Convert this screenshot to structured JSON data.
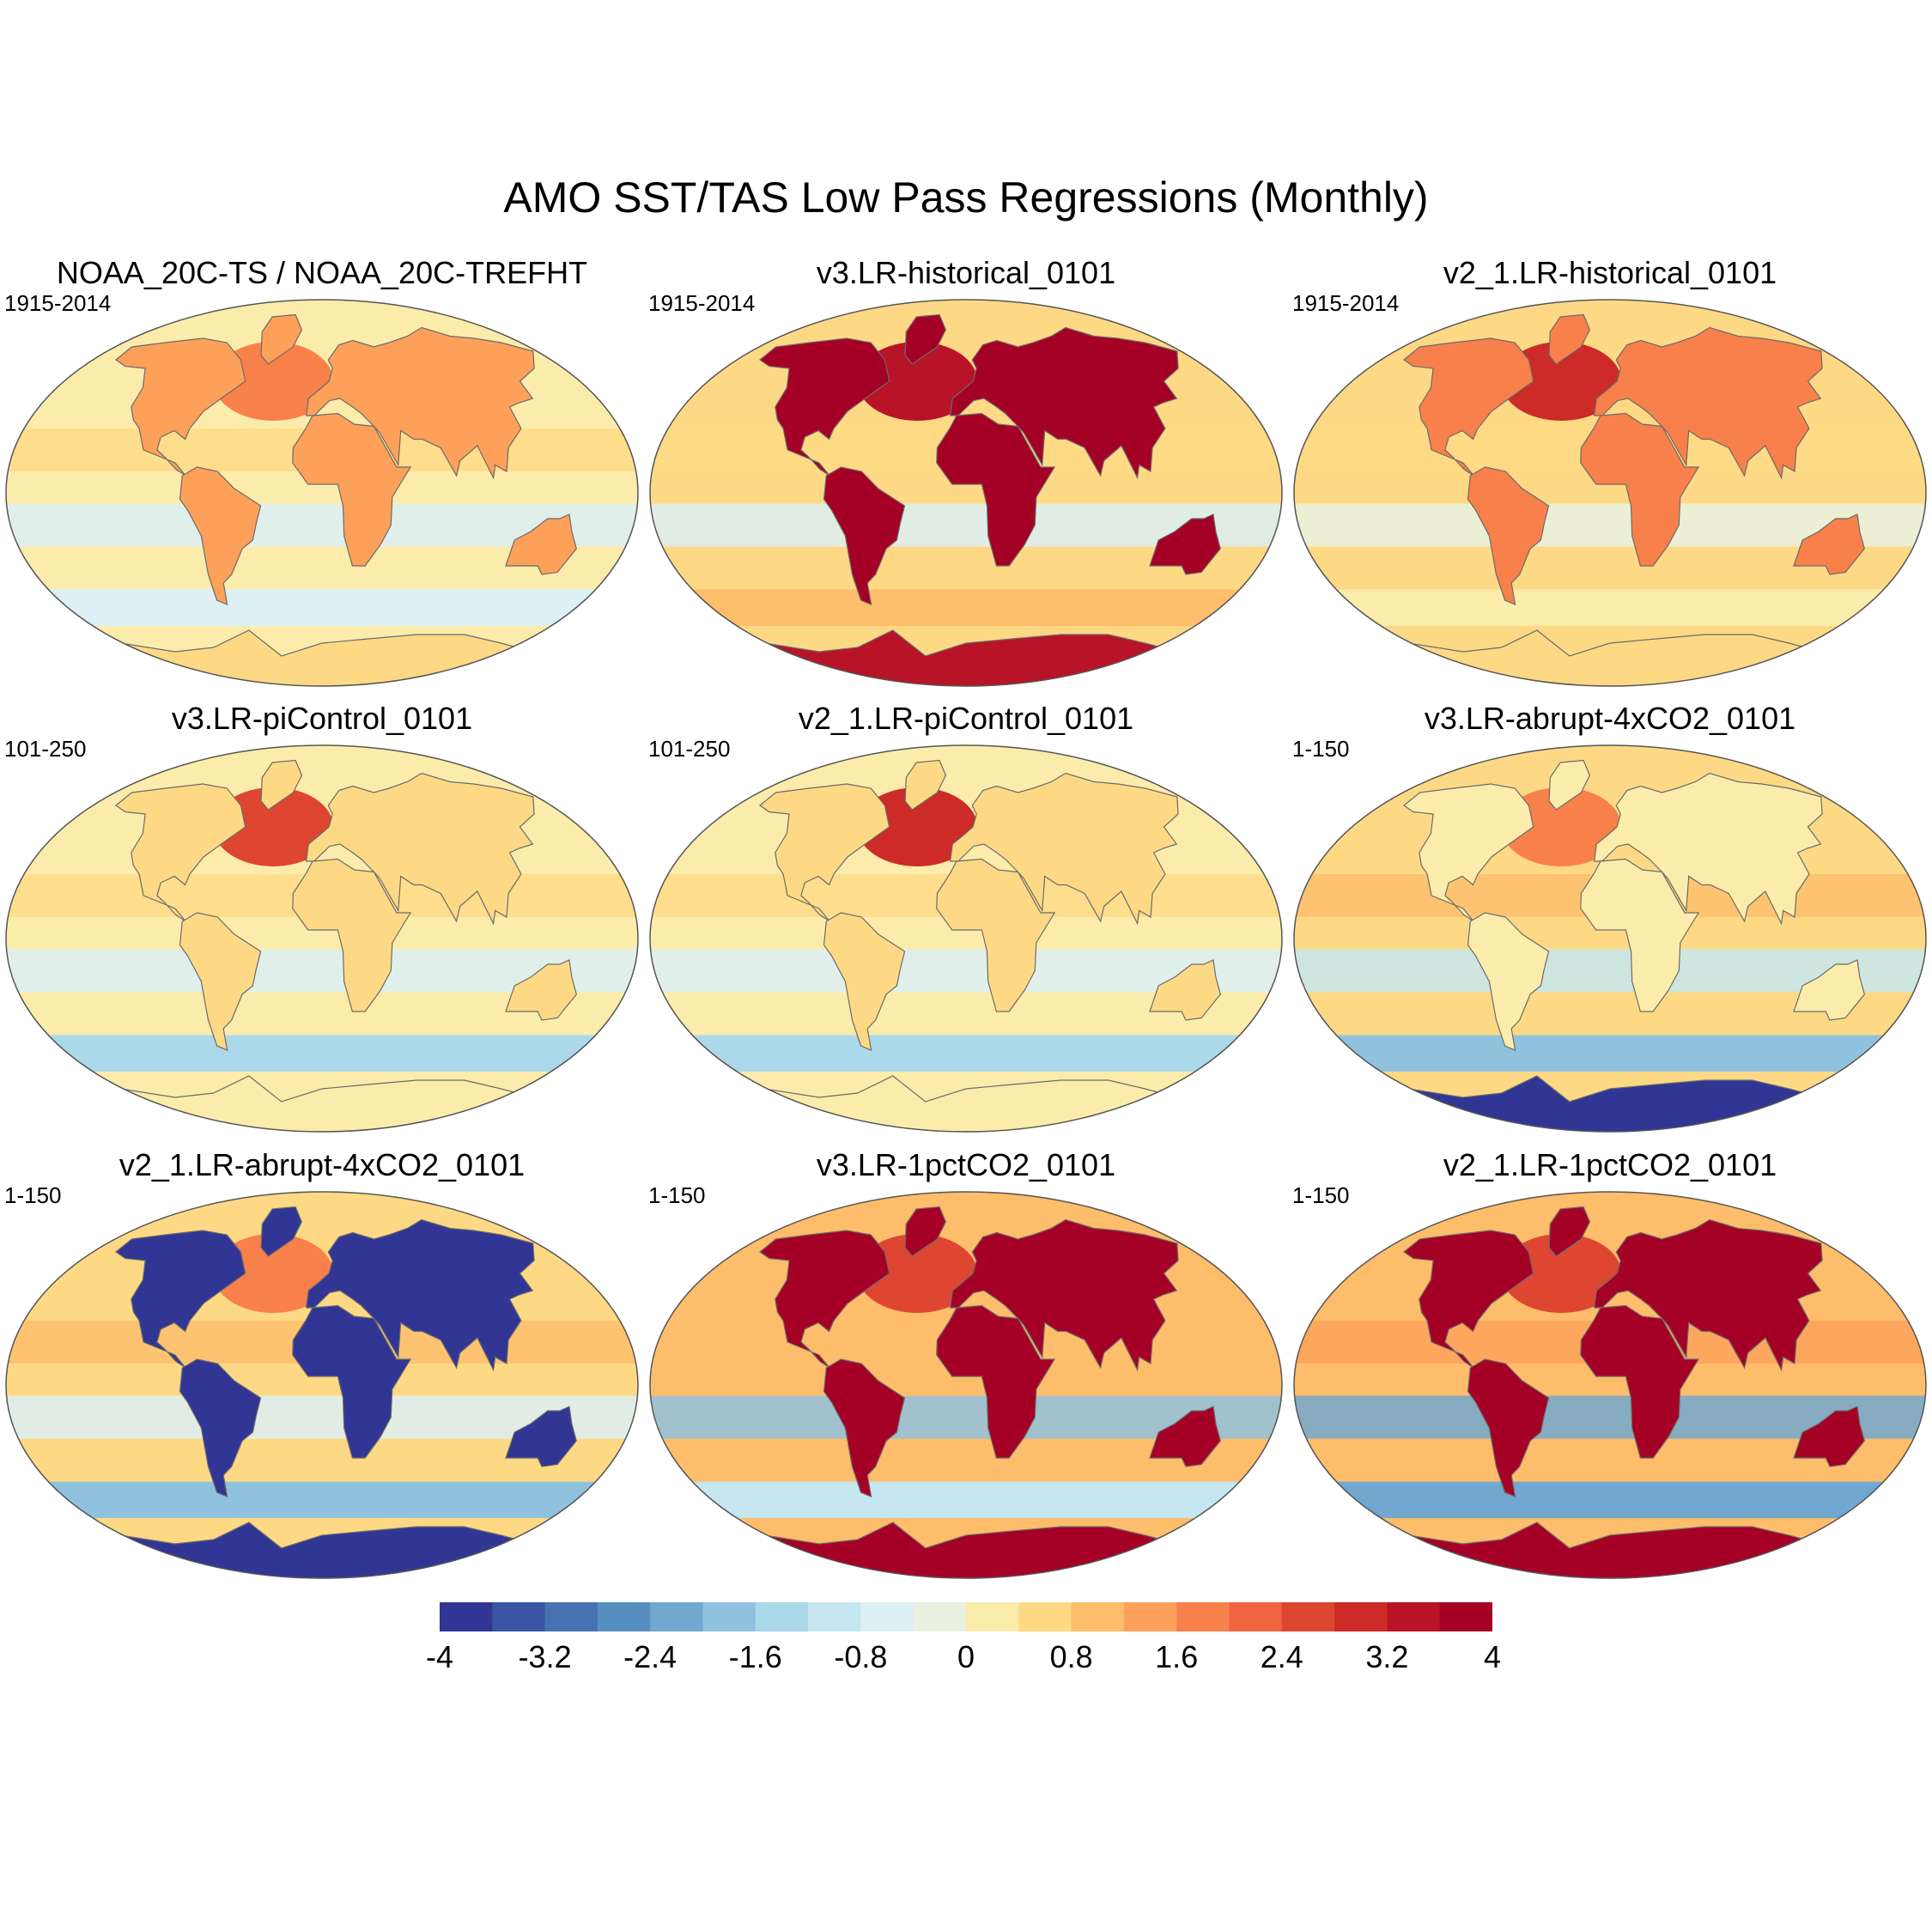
{
  "title": "AMO SST/TAS Low Pass Regressions (Monthly)",
  "panels": [
    {
      "title": "NOAA_20C-TS / NOAA_20C-TREFHT",
      "period": "1915-2014",
      "land": 1.2,
      "ocean": 0.3,
      "n_atlantic": 1.8,
      "southern_ocean": -0.8,
      "antarctica": 0.6,
      "tropical_pacific": 0.4,
      "tropical_south": -0.6
    },
    {
      "title": "v3.LR-historical_0101",
      "period": "1915-2014",
      "land": 4.2,
      "ocean": 0.6,
      "n_atlantic": 3.4,
      "southern_ocean": 1.0,
      "antarctica": 3.2,
      "tropical_pacific": 0.5,
      "tropical_south": -0.8
    },
    {
      "title": "v2_1.LR-historical_0101",
      "period": "1915-2014",
      "land": 1.8,
      "ocean": 0.4,
      "n_atlantic": 3.0,
      "southern_ocean": 0.2,
      "antarctica": 0.4,
      "tropical_pacific": 0.6,
      "tropical_south": -0.4
    },
    {
      "title": "v3.LR-piControl_0101",
      "period": "101-250",
      "land": 0.6,
      "ocean": 0.2,
      "n_atlantic": 2.6,
      "southern_ocean": -1.4,
      "antarctica": 0.3,
      "tropical_pacific": 0.6,
      "tropical_south": -0.8
    },
    {
      "title": "v2_1.LR-piControl_0101",
      "period": "101-250",
      "land": 0.4,
      "ocean": 0.1,
      "n_atlantic": 3.0,
      "southern_ocean": -1.6,
      "antarctica": 0.3,
      "tropical_pacific": 0.5,
      "tropical_south": -0.8
    },
    {
      "title": "v3.LR-abrupt-4xCO2_0101",
      "period": "1-150",
      "land": 0.3,
      "ocean": 0.4,
      "n_atlantic": 1.8,
      "southern_ocean": -2.0,
      "antarctica": -4.2,
      "tropical_pacific": 0.8,
      "tropical_south": -1.0
    },
    {
      "title": "v2_1.LR-abrupt-4xCO2_0101",
      "period": "1-150",
      "land": -4.2,
      "ocean": 0.6,
      "n_atlantic": 1.6,
      "southern_ocean": -2.0,
      "antarctica": -4.4,
      "tropical_pacific": 1.0,
      "tropical_south": -0.8
    },
    {
      "title": "v3.LR-1pctCO2_0101",
      "period": "1-150",
      "land": 4.4,
      "ocean": 0.9,
      "n_atlantic": 2.4,
      "southern_ocean": -1.2,
      "antarctica": 4.4,
      "tropical_pacific": 1.0,
      "tropical_south": -1.8
    },
    {
      "title": "v2_1.LR-1pctCO2_0101",
      "period": "1-150",
      "land": 4.4,
      "ocean": 1.0,
      "n_atlantic": 2.6,
      "southern_ocean": -2.4,
      "antarctica": 4.4,
      "tropical_pacific": 1.2,
      "tropical_south": -2.2
    }
  ],
  "colorbar": {
    "levels": [
      -4,
      -3.6,
      -3.2,
      -2.8,
      -2.4,
      -2.0,
      -1.6,
      -1.2,
      -0.8,
      -0.4,
      0,
      0.4,
      0.8,
      1.2,
      1.6,
      2.0,
      2.4,
      2.8,
      3.2,
      3.6,
      4
    ],
    "colors": [
      "#313695",
      "#3b55a5",
      "#4672b2",
      "#588fc1",
      "#72a8cf",
      "#90c2dd",
      "#abd9e9",
      "#c6e6f0",
      "#dcf0f5",
      "#e9f2e1",
      "#fcecab",
      "#fed985",
      "#fdbd6a",
      "#fca05a",
      "#f8804b",
      "#ee6340",
      "#de4632",
      "#cc2b27",
      "#b81327",
      "#a50026"
    ],
    "ticks": [
      "-4",
      "-3.2",
      "-2.4",
      "-1.6",
      "-0.8",
      "0",
      "0.8",
      "1.6",
      "2.4",
      "3.2",
      "4"
    ]
  }
}
